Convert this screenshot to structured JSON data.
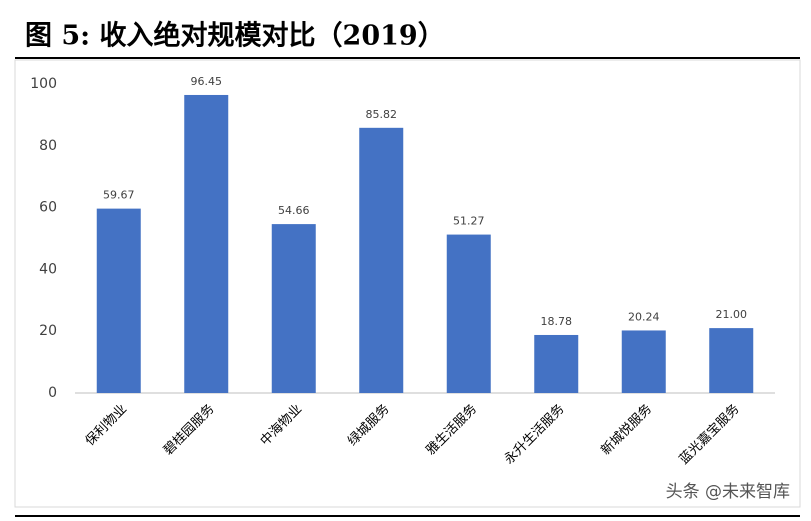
{
  "chart_data": {
    "type": "bar",
    "title": "图 5:  收入绝对规模对比（2019）",
    "categories": [
      "保利物业",
      "碧桂园服务",
      "中海物业",
      "绿城服务",
      "雅生活服务",
      "永升生活服务",
      "新城悦服务",
      "蓝光嘉宝服务"
    ],
    "values": [
      59.67,
      96.45,
      54.66,
      85.82,
      51.27,
      18.78,
      20.24,
      21
    ],
    "value_labels": [
      "59.67",
      "96.45",
      "54.66",
      "85.82",
      "51.27",
      "18.78",
      "20.24",
      "21.00"
    ],
    "color": "#4472c4",
    "ylim": [
      0,
      100
    ],
    "yticks": [
      0,
      20,
      40,
      60,
      80,
      100
    ],
    "grid": false,
    "watermark": "头条 @未来智库"
  }
}
